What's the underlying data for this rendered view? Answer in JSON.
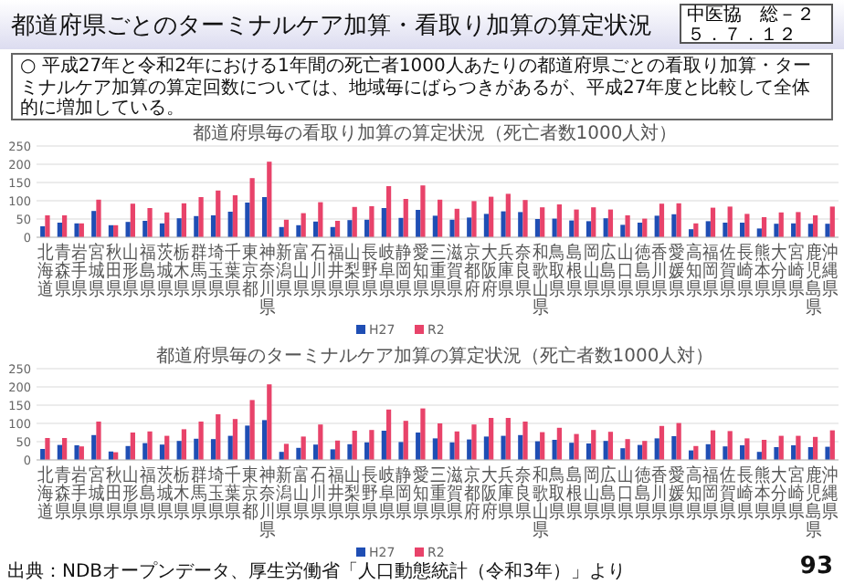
{
  "chart_data": [
    {
      "type": "bar",
      "title": "都道府県毎の看取り加算の算定状況（死亡者数1000人対）",
      "annotations": [
        "都道府県ごとのターミナルケア加算・看取り加算の算定状況",
        "中医協　総－２",
        "５．７．１２",
        "○ 平成27年と令和2年における1年間の死亡者1000人あたりの都道府県ごとの看取り加算・ターミナルケア加算の算定回数については、地域毎にばらつきがあるが、平成27年度と比較して全体的に増加している。"
      ],
      "categories": [
        "北海道",
        "青森県",
        "岩手県",
        "宮城県",
        "秋田県",
        "山形県",
        "福島県",
        "茨城県",
        "栃木県",
        "群馬県",
        "埼玉県",
        "千葉県",
        "東京都",
        "神奈川県",
        "新潟県",
        "富山県",
        "石川県",
        "福井県",
        "山梨県",
        "長野県",
        "岐阜県",
        "静岡県",
        "愛知県",
        "三重県",
        "滋賀県",
        "京都府",
        "大阪府",
        "兵庫県",
        "奈良県",
        "和歌山県",
        "鳥取県",
        "島根県",
        "岡山県",
        "広島県",
        "山口県",
        "徳島県",
        "香川県",
        "愛媛県",
        "高知県",
        "福岡県",
        "佐賀県",
        "長崎県",
        "熊本県",
        "大分県",
        "宮崎県",
        "鹿児島県",
        "沖縄県"
      ],
      "series": [
        {
          "name": "H27",
          "color": "#1f4eb4",
          "values": [
            30,
            40,
            38,
            72,
            33,
            42,
            45,
            38,
            52,
            58,
            60,
            70,
            95,
            110,
            28,
            33,
            43,
            28,
            47,
            48,
            80,
            53,
            75,
            59,
            48,
            54,
            64,
            71,
            69,
            50,
            51,
            46,
            44,
            52,
            34,
            40,
            59,
            63,
            22,
            44,
            40,
            40,
            24,
            37,
            38,
            37,
            37
          ]
        },
        {
          "name": "R2",
          "color": "#e8436a",
          "values": [
            60,
            60,
            38,
            103,
            33,
            92,
            80,
            68,
            93,
            110,
            128,
            115,
            162,
            207,
            48,
            66,
            96,
            45,
            83,
            85,
            140,
            105,
            142,
            103,
            78,
            99,
            111,
            119,
            102,
            82,
            90,
            76,
            82,
            76,
            60,
            51,
            92,
            93,
            38,
            81,
            84,
            64,
            55,
            68,
            69,
            60,
            84
          ]
        }
      ],
      "ylim": [
        0,
        250
      ],
      "yticks": [
        0,
        50,
        100,
        150,
        200,
        250
      ],
      "grid": "y",
      "legend": "bottom"
    },
    {
      "type": "bar",
      "title": "都道府県毎のターミナルケア加算の算定状況（死亡者数1000人対）",
      "annotations": [
        "出典：NDBオープンデータ、厚生労働省「人口動態統計（令和3年）」より",
        "93"
      ],
      "categories": [
        "北海道",
        "青森県",
        "岩手県",
        "宮城県",
        "秋田県",
        "山形県",
        "福島県",
        "茨城県",
        "栃木県",
        "群馬県",
        "埼玉県",
        "千葉県",
        "東京都",
        "神奈川県",
        "新潟県",
        "富山県",
        "石川県",
        "福井県",
        "山梨県",
        "長野県",
        "岐阜県",
        "静岡県",
        "愛知県",
        "三重県",
        "滋賀県",
        "京都府",
        "大阪府",
        "兵庫県",
        "奈良県",
        "和歌山県",
        "鳥取県",
        "島根県",
        "岡山県",
        "広島県",
        "山口県",
        "徳島県",
        "香川県",
        "愛媛県",
        "高知県",
        "福岡県",
        "佐賀県",
        "長崎県",
        "熊本県",
        "大分県",
        "宮崎県",
        "鹿児島県",
        "沖縄県"
      ],
      "series": [
        {
          "name": "H27",
          "color": "#1f4eb4",
          "values": [
            30,
            41,
            40,
            68,
            23,
            38,
            46,
            42,
            52,
            58,
            57,
            66,
            94,
            109,
            22,
            33,
            42,
            29,
            43,
            48,
            80,
            49,
            75,
            59,
            48,
            56,
            64,
            66,
            68,
            51,
            55,
            47,
            45,
            52,
            32,
            41,
            59,
            65,
            26,
            43,
            37,
            40,
            22,
            35,
            40,
            35,
            36
          ]
        },
        {
          "name": "R2",
          "color": "#e8436a",
          "values": [
            60,
            60,
            37,
            105,
            21,
            75,
            78,
            66,
            84,
            105,
            125,
            112,
            164,
            207,
            44,
            64,
            97,
            53,
            80,
            82,
            138,
            107,
            141,
            100,
            78,
            97,
            115,
            115,
            105,
            76,
            88,
            71,
            82,
            77,
            57,
            52,
            93,
            101,
            38,
            81,
            79,
            59,
            55,
            66,
            66,
            63,
            81
          ]
        }
      ],
      "ylim": [
        0,
        250
      ],
      "yticks": [
        0,
        50,
        100,
        150,
        200,
        250
      ],
      "grid": "y",
      "legend": "bottom"
    }
  ]
}
